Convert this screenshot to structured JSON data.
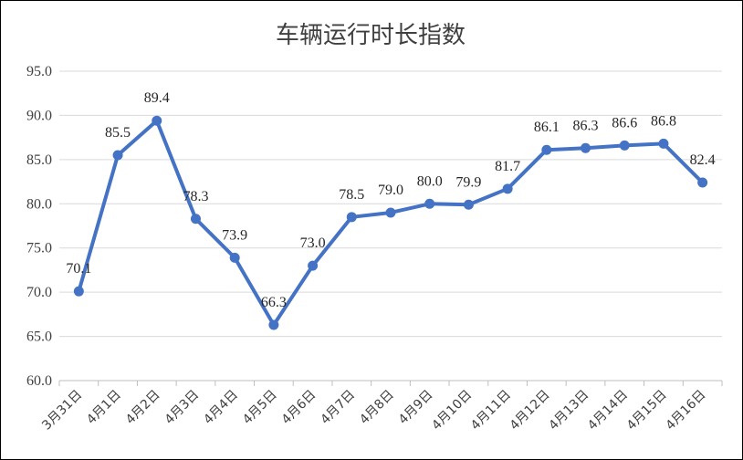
{
  "chart_data": {
    "type": "line",
    "title": "车辆运行时长指数",
    "xlabel": "",
    "ylabel": "",
    "categories": [
      "3月31日",
      "4月1日",
      "4月2日",
      "4月3日",
      "4月4日",
      "4月5日",
      "4月6日",
      "4月7日",
      "4月8日",
      "4月9日",
      "4月10日",
      "4月11日",
      "4月12日",
      "4月13日",
      "4月14日",
      "4月15日",
      "4月16日"
    ],
    "series": [
      {
        "values": [
          70.1,
          85.5,
          89.4,
          78.3,
          73.9,
          66.3,
          73.0,
          78.5,
          79.0,
          80.0,
          79.9,
          81.7,
          86.1,
          86.3,
          86.6,
          86.8,
          82.4
        ]
      }
    ],
    "data_labels": [
      "70.1",
      "85.5",
      "89.4",
      "78.3",
      "73.9",
      "66.3",
      "73.0",
      "78.5",
      "79.0",
      "80.0",
      "79.9",
      "81.7",
      "86.1",
      "86.3",
      "86.6",
      "86.8",
      "82.4"
    ],
    "yticks": [
      "60.0",
      "65.0",
      "70.0",
      "75.0",
      "80.0",
      "85.0",
      "90.0",
      "95.0"
    ],
    "ylim": [
      60,
      95
    ],
    "grid": true,
    "legend": "none",
    "colors": {
      "line": "#4472c4",
      "grid": "#d9d9d9",
      "text": "#404040"
    }
  }
}
